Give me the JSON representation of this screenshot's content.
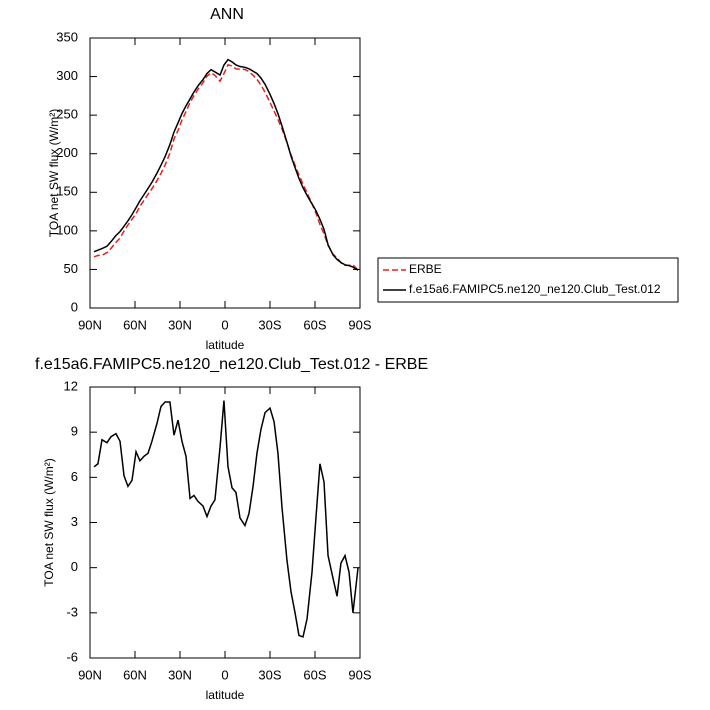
{
  "chart_data": [
    {
      "type": "line",
      "title": "ANN",
      "y_label": "TOA net SW flux (W/m²)",
      "x_label": "latitude",
      "x": [
        87.3,
        84.7,
        82.0,
        78.7,
        76.0,
        72.7,
        70.0,
        67.3,
        64.7,
        62.0,
        59.3,
        56.7,
        54.0,
        51.3,
        48.7,
        45.3,
        42.7,
        40.0,
        36.7,
        34.0,
        31.3,
        28.7,
        26.0,
        23.3,
        20.7,
        18.0,
        14.7,
        12.0,
        9.3,
        6.7,
        3.3,
        0.7,
        -2.0,
        -4.7,
        -7.3,
        -10.0,
        -13.3,
        -16.0,
        -18.7,
        -21.3,
        -24.0,
        -26.7,
        -30.0,
        -32.7,
        -35.3,
        -38.0,
        -41.3,
        -44.0,
        -46.7,
        -49.3,
        -52.0,
        -54.7,
        -58.0,
        -60.7,
        -63.3,
        -66.0,
        -68.7,
        -72.0,
        -74.7,
        -77.3,
        -80.0,
        -82.7,
        -85.3,
        -88.7
      ],
      "series": [
        {
          "name": "ERBE",
          "color": "#e8201c",
          "dash": true,
          "values": [
            66.3,
            68.1,
            68.5,
            71.7,
            77.3,
            85.1,
            90.6,
            99.9,
            107.6,
            115.2,
            122.3,
            131.9,
            139.6,
            147.4,
            154.6,
            165.4,
            174.3,
            185,
            201,
            219.2,
            230.2,
            243.6,
            254.6,
            266.4,
            275.2,
            283.6,
            291.9,
            300.6,
            304.9,
            301.5,
            294,
            303.9,
            315.3,
            313.7,
            310,
            309.7,
            309.2,
            306.4,
            301.6,
            296.4,
            288.8,
            279.7,
            266.4,
            255.3,
            244.4,
            232,
            214.5,
            198.6,
            185,
            172.5,
            160.6,
            149.4,
            135.3,
            122.6,
            108.1,
            96.3,
            81.2,
            69.7,
            64.9,
            58.7,
            55.2,
            55.3,
            56,
            49
          ]
        },
        {
          "name": "f.e15a6.FAMIPC5.ne120_ne120.Club_Test.012",
          "color": "#000000",
          "dash": false,
          "values": [
            73,
            75,
            77,
            80,
            86,
            94,
            99,
            106,
            113,
            121,
            130,
            139,
            147,
            155,
            163,
            175,
            185,
            196,
            212,
            228,
            240,
            252,
            262,
            271,
            280,
            288,
            296,
            304,
            309,
            306,
            302,
            315,
            322,
            319,
            315,
            313,
            312,
            310,
            307,
            304,
            298,
            290,
            277,
            265,
            252,
            236,
            215,
            197,
            182,
            168,
            156,
            146,
            135,
            126,
            115,
            102,
            82,
            69,
            63,
            59,
            56,
            55,
            53,
            49
          ]
        }
      ],
      "xlim": [
        90,
        -90
      ],
      "xticks": [
        {
          "value": 90,
          "label": "90N"
        },
        {
          "value": 60,
          "label": "60N"
        },
        {
          "value": 30,
          "label": "30N"
        },
        0,
        {
          "value": -30,
          "label": "30S"
        },
        {
          "value": -60,
          "label": "60S"
        },
        {
          "value": -90,
          "label": "90S"
        }
      ],
      "ylim": [
        0,
        350
      ],
      "yticks": [
        0,
        50,
        100,
        150,
        200,
        250,
        300,
        350
      ],
      "legend": "right"
    },
    {
      "type": "line",
      "title": "f.e15a6.FAMIPC5.ne120_ne120.Club_Test.012 - ERBE",
      "y_label": "TOA net SW flux (W/m²)",
      "x_label": "latitude",
      "x": [
        87.3,
        84.7,
        82.0,
        78.7,
        76.0,
        72.7,
        70.0,
        67.3,
        64.7,
        62.0,
        59.3,
        56.7,
        54.0,
        51.3,
        48.7,
        45.3,
        42.7,
        40.0,
        36.7,
        34.0,
        31.3,
        28.7,
        26.0,
        23.3,
        20.7,
        18.0,
        14.7,
        12.0,
        9.3,
        6.7,
        3.3,
        0.7,
        -2.0,
        -4.7,
        -7.3,
        -10.0,
        -13.3,
        -16.0,
        -18.7,
        -21.3,
        -24.0,
        -26.7,
        -30.0,
        -32.7,
        -35.3,
        -38.0,
        -41.3,
        -44.0,
        -46.7,
        -49.3,
        -52.0,
        -54.7,
        -58.0,
        -60.7,
        -63.3,
        -66.0,
        -68.7,
        -72.0,
        -74.7,
        -77.3,
        -80.0,
        -82.7,
        -85.3,
        -88.7
      ],
      "values": [
        6.7,
        6.9,
        8.5,
        8.3,
        8.7,
        8.9,
        8.4,
        6.1,
        5.4,
        5.8,
        7.7,
        7.1,
        7.4,
        7.6,
        8.4,
        9.6,
        10.7,
        11.0,
        11.0,
        8.8,
        9.8,
        8.4,
        7.4,
        4.6,
        4.8,
        4.4,
        4.1,
        3.4,
        4.1,
        4.5,
        8.0,
        11.1,
        6.7,
        5.3,
        5.0,
        3.3,
        2.8,
        3.6,
        5.4,
        7.6,
        9.2,
        10.3,
        10.6,
        9.7,
        7.6,
        4.0,
        0.5,
        -1.6,
        -3.0,
        -4.5,
        -4.6,
        -3.4,
        -0.3,
        3.4,
        6.9,
        5.7,
        0.8,
        -0.7,
        -1.9,
        0.3,
        0.8,
        -0.3,
        -3.0,
        0.0
      ],
      "color": "#000000",
      "xlim": [
        90,
        -90
      ],
      "xticks": [
        {
          "value": 90,
          "label": "90N"
        },
        {
          "value": 60,
          "label": "60N"
        },
        {
          "value": 30,
          "label": "30N"
        },
        0,
        {
          "value": -30,
          "label": "30S"
        },
        {
          "value": -60,
          "label": "60S"
        },
        {
          "value": -90,
          "label": "90S"
        }
      ],
      "ylim": [
        -6,
        12
      ],
      "yticks": [
        -6,
        -3,
        0,
        3,
        6,
        9,
        12
      ]
    }
  ]
}
